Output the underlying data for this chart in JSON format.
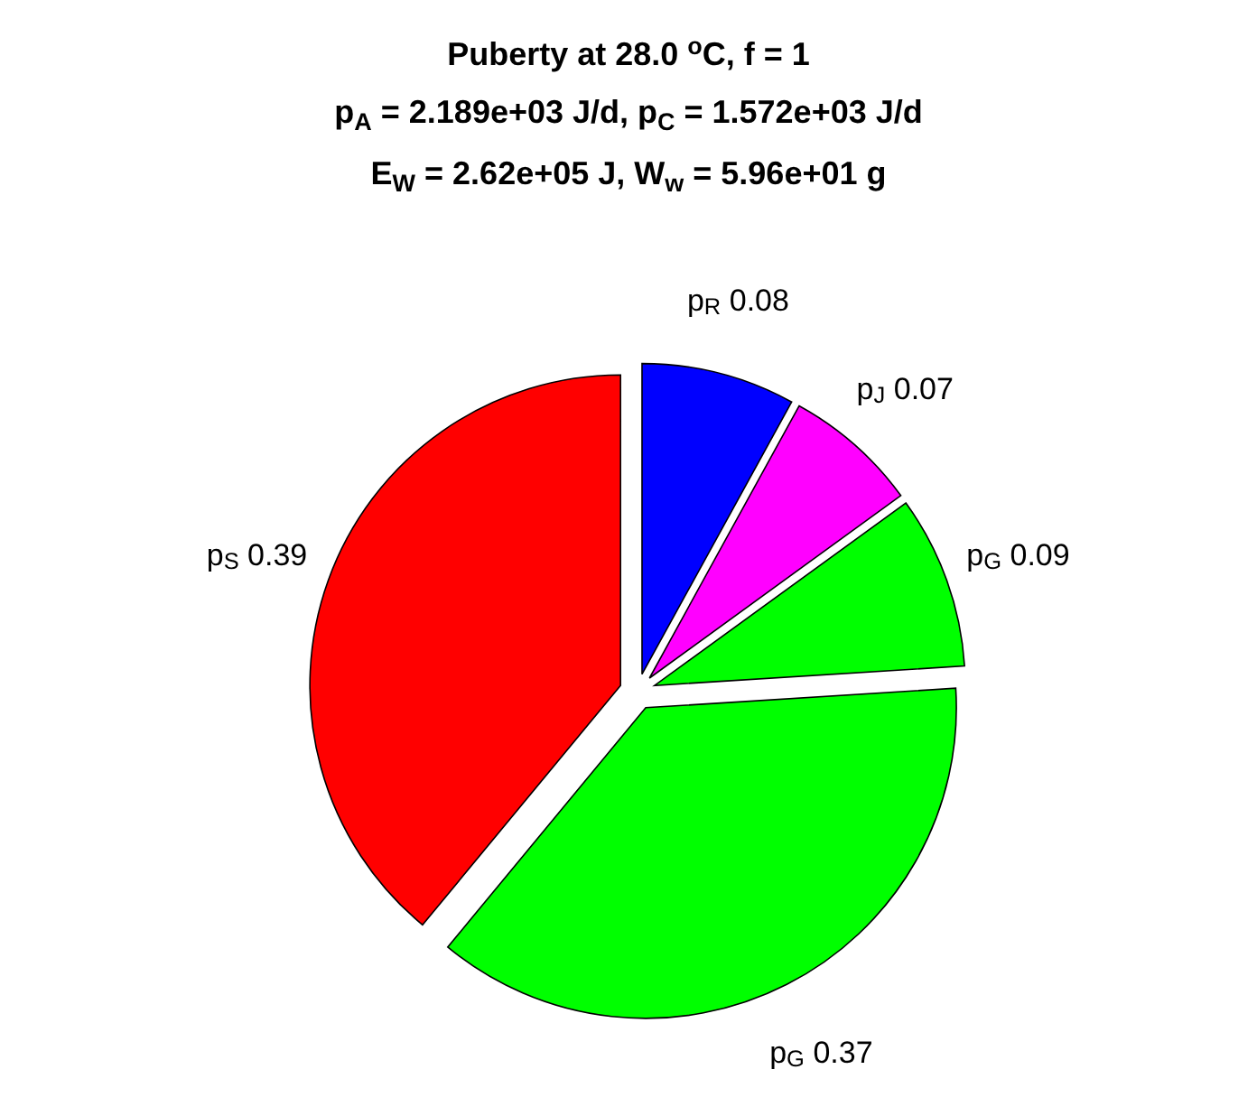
{
  "chart_data": {
    "type": "pie",
    "title": "Puberty at 28.0 $^{o}$C, f = 1",
    "subtitle": "p$_{A}$ = 2.189e+03 J/d,  p$_{C}$ = 1.572e+03 J/d",
    "annotations": [
      "E$_{W}$ = 2.62e+05 J, W$_{w}$ = 5.96e+01 g"
    ],
    "categories": [
      "p$_{R}$",
      "p$_{J}$",
      "p$_{G}$",
      "p$_{G}$",
      "p$_{S}$"
    ],
    "values": [
      0.08,
      0.07,
      0.09,
      0.37,
      0.39
    ],
    "colors": [
      "#0000ff",
      "#ff00ff",
      "#00ff00",
      "#00ff00",
      "#ff0000"
    ],
    "data_labels": true
  }
}
